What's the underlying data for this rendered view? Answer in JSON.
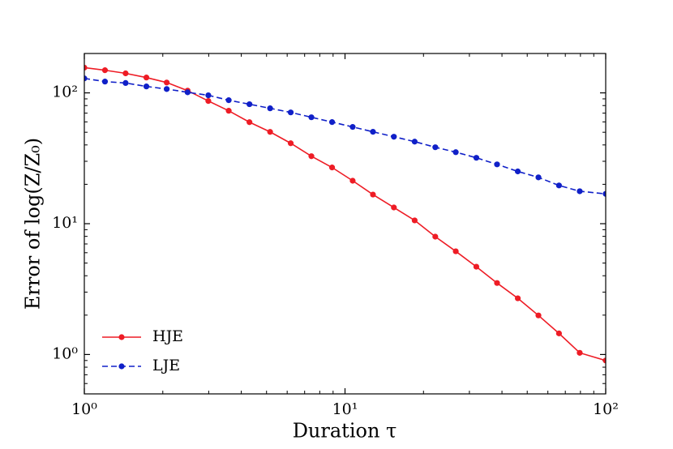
{
  "chart_data": {
    "type": "line",
    "x_label": "Duration τ",
    "y_label": "Error of log(Z/Z₀)",
    "x": [
      1,
      1.2,
      1.44,
      1.73,
      2.07,
      2.49,
      2.99,
      3.58,
      4.3,
      5.16,
      6.19,
      7.43,
      8.92,
      10.7,
      12.8,
      15.4,
      18.5,
      22.2,
      26.6,
      31.9,
      38.3,
      46,
      55.2,
      66.2,
      79.5,
      100
    ],
    "series": [
      {
        "name": "HJE",
        "color": "#ee1c25",
        "linestyle": "solid",
        "values": [
          156,
          149,
          141,
          131,
          120,
          104,
          86.7,
          73,
          59.7,
          50.3,
          41.2,
          32.8,
          26.9,
          21.3,
          16.7,
          13.3,
          10.6,
          7.96,
          6.15,
          4.69,
          3.52,
          2.69,
          1.99,
          1.45,
          1.03,
          0.9
        ]
      },
      {
        "name": "LJE",
        "color": "#1020c8",
        "linestyle": "dashed",
        "values": [
          129,
          122,
          119,
          112,
          107,
          101,
          95.8,
          87.9,
          81.9,
          76.2,
          70.9,
          65.1,
          59.8,
          54.9,
          50.4,
          46.2,
          42.4,
          38.4,
          35.2,
          31.9,
          28.4,
          25.1,
          22.6,
          19.6,
          17.7,
          16.9
        ]
      }
    ],
    "xscale": "log",
    "yscale": "log",
    "xlim": [
      1,
      100
    ],
    "ylim": [
      0.5,
      200
    ],
    "xticks": [
      {
        "value": 1,
        "label": "10⁰"
      },
      {
        "value": 10,
        "label": "10¹"
      },
      {
        "value": 100,
        "label": "10²"
      }
    ],
    "yticks": [
      {
        "value": 1,
        "label": "10⁰"
      },
      {
        "value": 10,
        "label": "10¹"
      },
      {
        "value": 100,
        "label": "10²"
      }
    ],
    "legend": "lower left",
    "grid": false
  }
}
